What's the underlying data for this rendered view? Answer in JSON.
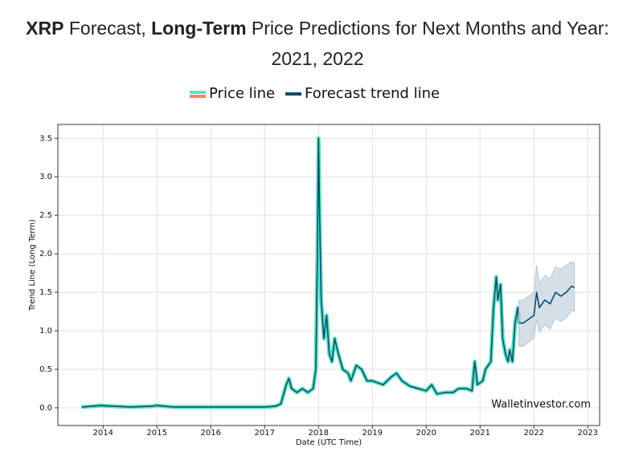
{
  "chart_data": {
    "type": "line",
    "title": [
      "XRP",
      " Forecast, ",
      "Long-Term",
      " Price Predictions for Next Months and Year: 2021, 2022"
    ],
    "x_label": "Date (UTC Time)",
    "y_label": "Trend Line (Long Term)",
    "annotation": "Walletinvestor.com",
    "xlim": [
      2013.16,
      2023.22
    ],
    "xticks": [
      2014,
      2015,
      2016,
      2017,
      2018,
      2019,
      2020,
      2021,
      2022,
      2023
    ],
    "ylim": [
      -0.23,
      3.68
    ],
    "yticks": [
      {
        "value": 0,
        "label": "0.0"
      },
      0.5,
      {
        "value": 1,
        "label": "1.0"
      },
      1.5,
      {
        "value": 2,
        "label": "2.0"
      },
      2.5,
      {
        "value": 3,
        "label": "3.0"
      },
      3.5
    ],
    "grid": true,
    "series": [
      {
        "name": "Price line",
        "color": "#5ee0c0",
        "inner_color": "#0b4a6f",
        "legend_edge_color": "#f4866a",
        "x": [
          2013.6,
          2013.8,
          2013.95,
          2014.2,
          2014.5,
          2014.9,
          2015.0,
          2015.3,
          2016.0,
          2016.5,
          2017.0,
          2017.2,
          2017.3,
          2017.4,
          2017.45,
          2017.5,
          2017.6,
          2017.7,
          2017.8,
          2017.9,
          2017.95,
          2017.98,
          2018.0,
          2018.02,
          2018.05,
          2018.1,
          2018.15,
          2018.2,
          2018.25,
          2018.3,
          2018.35,
          2018.45,
          2018.55,
          2018.6,
          2018.7,
          2018.8,
          2018.9,
          2019.0,
          2019.2,
          2019.35,
          2019.45,
          2019.55,
          2019.7,
          2019.85,
          2020.0,
          2020.1,
          2020.2,
          2020.35,
          2020.5,
          2020.6,
          2020.75,
          2020.85,
          2020.9,
          2020.95,
          2021.05,
          2021.1,
          2021.2,
          2021.25,
          2021.3,
          2021.33,
          2021.38,
          2021.42,
          2021.47,
          2021.52,
          2021.55,
          2021.6,
          2021.65,
          2021.7,
          2021.72
        ],
        "values": [
          0.01,
          0.02,
          0.03,
          0.02,
          0.01,
          0.02,
          0.03,
          0.01,
          0.01,
          0.01,
          0.01,
          0.02,
          0.05,
          0.3,
          0.38,
          0.25,
          0.2,
          0.25,
          0.2,
          0.25,
          0.5,
          2.0,
          3.5,
          2.5,
          1.4,
          0.9,
          1.2,
          0.7,
          0.6,
          0.9,
          0.75,
          0.5,
          0.45,
          0.35,
          0.55,
          0.5,
          0.35,
          0.35,
          0.3,
          0.4,
          0.45,
          0.35,
          0.28,
          0.25,
          0.22,
          0.3,
          0.18,
          0.2,
          0.2,
          0.25,
          0.25,
          0.22,
          0.6,
          0.3,
          0.35,
          0.5,
          0.6,
          1.3,
          1.7,
          1.4,
          1.6,
          0.9,
          0.7,
          0.6,
          0.75,
          0.6,
          1.1,
          1.3,
          1.1
        ]
      },
      {
        "name": "Forecast trend line",
        "color": "#0b4a73",
        "band_color": "#b8cad8",
        "x": [
          2021.72,
          2021.8,
          2021.9,
          2022.0,
          2022.05,
          2022.1,
          2022.2,
          2022.3,
          2022.4,
          2022.5,
          2022.6,
          2022.7,
          2022.75
        ],
        "values": [
          1.1,
          1.1,
          1.15,
          1.2,
          1.5,
          1.3,
          1.4,
          1.35,
          1.5,
          1.45,
          1.5,
          1.58,
          1.56
        ],
        "lower": [
          0.8,
          0.8,
          0.85,
          0.9,
          1.15,
          0.98,
          1.08,
          1.02,
          1.17,
          1.12,
          1.17,
          1.27,
          1.25
        ],
        "upper": [
          1.4,
          1.4,
          1.45,
          1.5,
          1.85,
          1.62,
          1.72,
          1.68,
          1.83,
          1.8,
          1.85,
          1.9,
          1.88
        ]
      }
    ]
  }
}
